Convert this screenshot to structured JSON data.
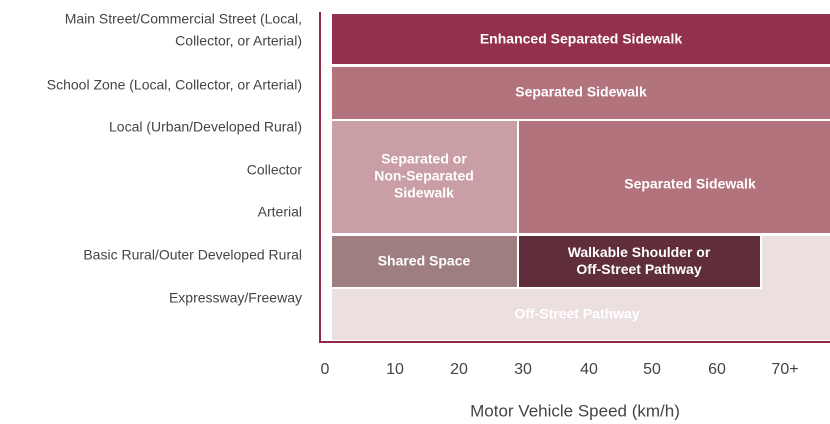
{
  "rows": [
    {
      "lines": [
        "Main Street/Commercial Street (Local,",
        "Collector, or Arterial)"
      ]
    },
    {
      "lines": [
        "School Zone (Local, Collector, or Arterial)"
      ]
    },
    {
      "lines": [
        "Local (Urban/Developed Rural)"
      ]
    },
    {
      "lines": [
        "Collector"
      ]
    },
    {
      "lines": [
        "Arterial"
      ]
    },
    {
      "lines": [
        "Basic Rural/Outer Developed Rural"
      ]
    },
    {
      "lines": [
        "Expressway/Freeway"
      ]
    }
  ],
  "x_axis": {
    "ticks": [
      "0",
      "10",
      "20",
      "30",
      "40",
      "50",
      "60",
      "70+"
    ],
    "label": "Motor Vehicle Speed (km/h)"
  },
  "zones": [
    {
      "lines": [
        "Enhanced Separated Sidewalk"
      ]
    },
    {
      "lines": [
        "Separated Sidewalk"
      ]
    },
    {
      "lines": [
        "Separated or",
        "Non-Separated",
        "Sidewalk"
      ]
    },
    {
      "lines": [
        "Separated Sidewalk"
      ]
    },
    {
      "lines": [
        "Shared Space"
      ]
    },
    {
      "lines": [
        "Walkable Shoulder or",
        "Off-Street Pathway"
      ]
    },
    {
      "lines": [
        "Off-Street Pathway"
      ]
    }
  ]
}
